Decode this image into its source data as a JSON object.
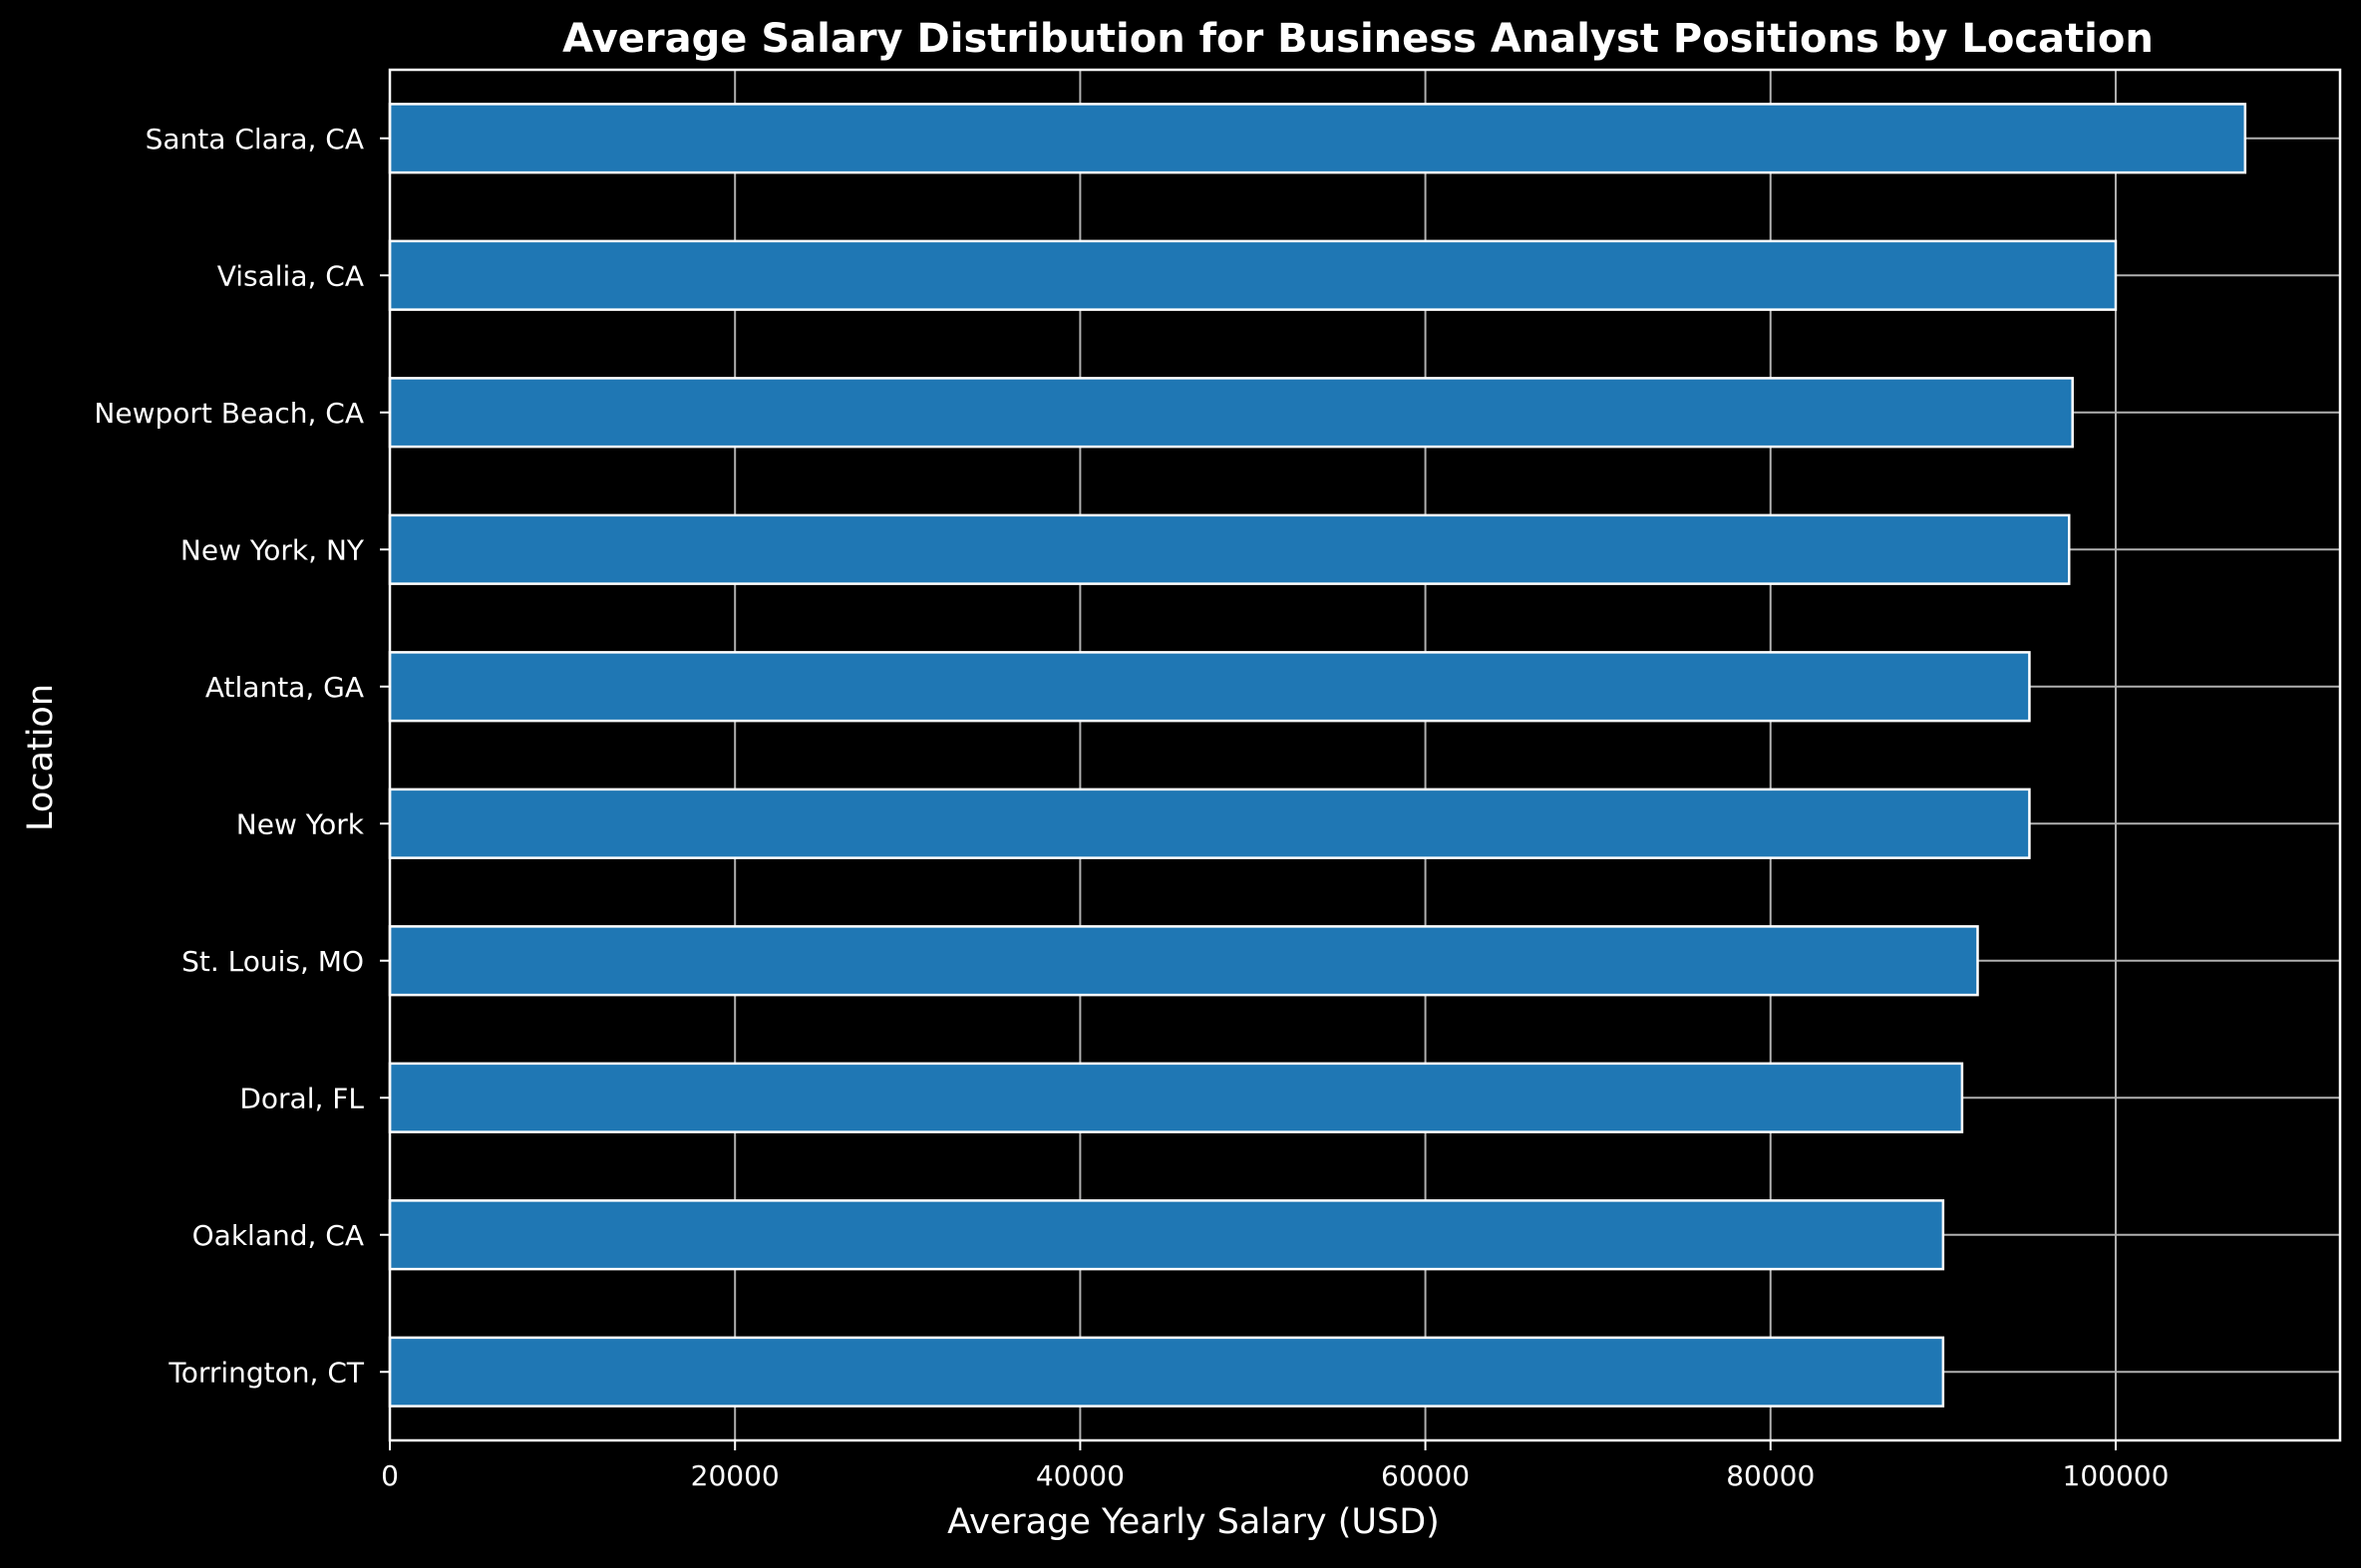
{
  "chart_data": {
    "type": "bar",
    "orientation": "horizontal",
    "title": "Average Salary Distribution for Business Analyst Positions by Location",
    "xlabel": "Average Yearly Salary (USD)",
    "ylabel": "Location",
    "categories": [
      "Santa Clara, CA",
      "Visalia, CA",
      "Newport Beach, CA",
      "New York, NY",
      "Atlanta, GA",
      "New York",
      "St. Louis, MO",
      "Doral, FL",
      "Oakland, CA",
      "Torrington, CT"
    ],
    "values": [
      107500,
      100000,
      97500,
      97300,
      95000,
      95000,
      92000,
      91100,
      90000,
      90000
    ],
    "xlim": [
      0,
      113000
    ],
    "xticks": [
      0,
      20000,
      40000,
      60000,
      80000,
      100000
    ],
    "xtick_labels": [
      "0",
      "20000",
      "40000",
      "60000",
      "80000",
      "100000"
    ],
    "grid": true,
    "colors": {
      "background": "#000000",
      "bar_fill": "#1f77b4",
      "bar_edge": "#ffffff",
      "grid": "#b0b0b0",
      "text": "#ffffff"
    }
  }
}
